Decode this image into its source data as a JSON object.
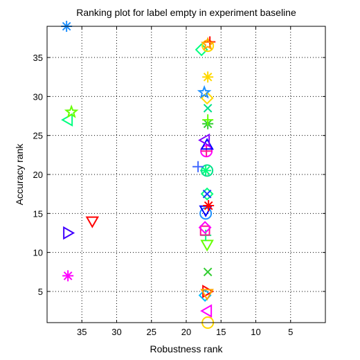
{
  "chart_data": {
    "type": "scatter",
    "title": "Ranking plot for label empty in experiment baseline",
    "xlabel": "Robustness rank",
    "ylabel": "Accuracy rank",
    "xlim": [
      40,
      0
    ],
    "ylim": [
      39,
      1
    ],
    "x_reversed": true,
    "y_reversed": true,
    "xticks": [
      35,
      30,
      25,
      20,
      15,
      10,
      5
    ],
    "yticks": [
      5,
      10,
      15,
      20,
      25,
      30,
      35
    ],
    "grid": true,
    "points": [
      {
        "x": 16.9,
        "y": 1,
        "marker": "circle",
        "color": "#ffd700"
      },
      {
        "x": 17.0,
        "y": 2.5,
        "marker": "triangle-left",
        "color": "#ff00ff"
      },
      {
        "x": 17.3,
        "y": 4.5,
        "marker": "diamond",
        "color": "#00bfff"
      },
      {
        "x": 17.0,
        "y": 5,
        "marker": "triangle-right",
        "color": "#ff0000"
      },
      {
        "x": 17.0,
        "y": 4.7,
        "marker": "triangle-down",
        "color": "#ffa500"
      },
      {
        "x": 37.0,
        "y": 7,
        "marker": "asterisk",
        "color": "#ff00ff"
      },
      {
        "x": 16.9,
        "y": 7.5,
        "marker": "x",
        "color": "#32cd32"
      },
      {
        "x": 17.0,
        "y": 11,
        "marker": "triangle-down",
        "color": "#66ff00"
      },
      {
        "x": 17.2,
        "y": 12.2,
        "marker": "plus",
        "color": "#00ff7f"
      },
      {
        "x": 37.0,
        "y": 12.5,
        "marker": "triangle-right",
        "color": "#4000ff"
      },
      {
        "x": 17.3,
        "y": 12.8,
        "marker": "square",
        "color": "#ff1493"
      },
      {
        "x": 17.3,
        "y": 13.2,
        "marker": "diamond",
        "color": "#ff00ff"
      },
      {
        "x": 33.5,
        "y": 14,
        "marker": "triangle-down",
        "color": "#ff0000"
      },
      {
        "x": 17.2,
        "y": 15,
        "marker": "circle",
        "color": "#1e90ff"
      },
      {
        "x": 17.2,
        "y": 15.4,
        "marker": "triangle-down",
        "color": "#0000ff"
      },
      {
        "x": 16.8,
        "y": 16,
        "marker": "asterisk",
        "color": "#ff0000"
      },
      {
        "x": 17.0,
        "y": 17.5,
        "marker": "diamond",
        "color": "#00ff7f"
      },
      {
        "x": 17.0,
        "y": 17.5,
        "marker": "x",
        "color": "#1e3cff"
      },
      {
        "x": 17.2,
        "y": 20.5,
        "marker": "asterisk",
        "color": "#00ff7f"
      },
      {
        "x": 17.0,
        "y": 20.5,
        "marker": "circle",
        "color": "#00e08a"
      },
      {
        "x": 18.3,
        "y": 21,
        "marker": "plus",
        "color": "#4169ff"
      },
      {
        "x": 17.1,
        "y": 23,
        "marker": "circle",
        "color": "#ff00ff"
      },
      {
        "x": 17.1,
        "y": 23,
        "marker": "plus",
        "color": "#ff1493"
      },
      {
        "x": 17.0,
        "y": 23.8,
        "marker": "triangle-up",
        "color": "#0000ff"
      },
      {
        "x": 17.3,
        "y": 24.4,
        "marker": "triangle-left",
        "color": "#8000ff"
      },
      {
        "x": 37.0,
        "y": 27,
        "marker": "triangle-left",
        "color": "#00ff7f"
      },
      {
        "x": 16.9,
        "y": 26.5,
        "marker": "asterisk",
        "color": "#32cd32"
      },
      {
        "x": 16.9,
        "y": 27,
        "marker": "plus",
        "color": "#66ff00"
      },
      {
        "x": 36.5,
        "y": 28,
        "marker": "pentagram",
        "color": "#66ff00"
      },
      {
        "x": 16.9,
        "y": 28.5,
        "marker": "x",
        "color": "#00e08a"
      },
      {
        "x": 17.0,
        "y": 29.8,
        "marker": "diamond",
        "color": "#ffd700"
      },
      {
        "x": 17.4,
        "y": 30.5,
        "marker": "pentagram",
        "color": "#1e90ff"
      },
      {
        "x": 16.9,
        "y": 32.5,
        "marker": "asterisk",
        "color": "#ffd700"
      },
      {
        "x": 17.8,
        "y": 36,
        "marker": "diamond",
        "color": "#00ff7f"
      },
      {
        "x": 16.9,
        "y": 36.5,
        "marker": "circle",
        "color": "#ffd700"
      },
      {
        "x": 16.6,
        "y": 37,
        "marker": "plus",
        "color": "#ff0000"
      },
      {
        "x": 16.9,
        "y": 36.7,
        "marker": "pentagram",
        "color": "#ffa500"
      },
      {
        "x": 37.2,
        "y": 39,
        "marker": "asterisk",
        "color": "#1e90ff"
      }
    ]
  }
}
